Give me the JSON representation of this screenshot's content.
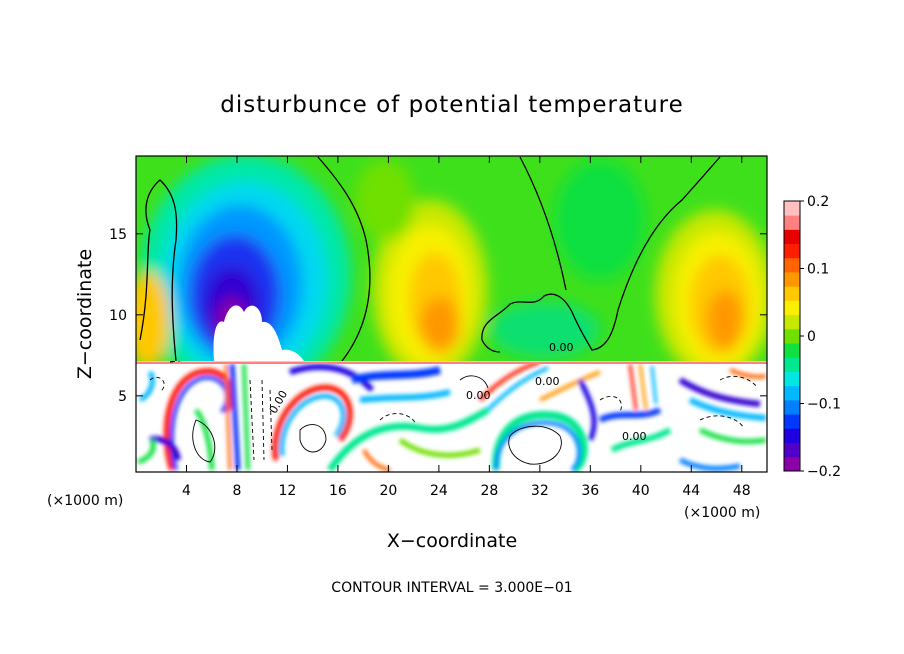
{
  "chart_data": {
    "type": "heatmap",
    "title": "disturbunce of potential temperature",
    "xlabel": "X−coordinate",
    "ylabel": "Z−coordinate",
    "x_unit": "(×1000 m)",
    "x_unit_right": "(×1000 m)",
    "xlim": [
      0,
      50
    ],
    "ylim": [
      0.3,
      19.8
    ],
    "x_ticks": [
      4,
      8,
      12,
      16,
      20,
      24,
      28,
      32,
      36,
      40,
      44,
      48
    ],
    "y_ticks": [
      5,
      10,
      15
    ],
    "grid": false,
    "colorbar": {
      "ticks": [
        0.2,
        0.1,
        0,
        -0.1,
        -0.2
      ],
      "tick_labels": [
        "0.2",
        "0.1",
        "0",
        "−0.1",
        "−0.2"
      ],
      "range": [
        -0.2,
        0.2
      ],
      "colors": [
        "#8b00a8",
        "#5200c8",
        "#1e00e0",
        "#0038ff",
        "#0080ff",
        "#00b8ff",
        "#00e8e0",
        "#00e890",
        "#10e040",
        "#70e000",
        "#c8e800",
        "#f8f000",
        "#ffc800",
        "#ff9800",
        "#ff6400",
        "#ff1e00",
        "#e80000",
        "#ff8080",
        "#ffc0c0"
      ]
    },
    "contour_labels": [
      "0.00",
      "0.00",
      "0.00",
      "0.00",
      "0.00"
    ],
    "footer": "CONTOUR INTERVAL = 3.000E−01"
  }
}
